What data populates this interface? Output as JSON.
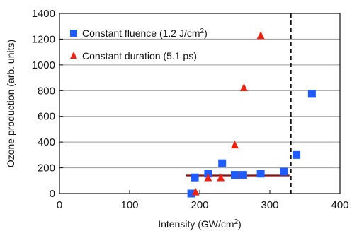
{
  "chart_data": {
    "type": "scatter",
    "xlabel": "Intensity (GW/cm",
    "xlabel_sup": "2",
    "xlabel_end": ")",
    "ylabel": "Ozone production (arb. units)",
    "xlim": [
      0,
      400
    ],
    "ylim": [
      0,
      1400
    ],
    "x_ticks": [
      "0",
      "100",
      "200",
      "300",
      "400"
    ],
    "y_ticks": [
      "0",
      "200",
      "400",
      "600",
      "800",
      "1000",
      "1200",
      "1400"
    ],
    "grid": "horizontal",
    "legend_position": "top-left",
    "series": [
      {
        "name": "Constant fluence (1.2 J/cm",
        "name_sup": "2",
        "name_end": ")",
        "marker": "square",
        "color": "#1f5cff",
        "points": [
          {
            "x": 188,
            "y": 0
          },
          {
            "x": 193,
            "y": 125
          },
          {
            "x": 212,
            "y": 155
          },
          {
            "x": 232,
            "y": 235
          },
          {
            "x": 250,
            "y": 145
          },
          {
            "x": 262,
            "y": 145
          },
          {
            "x": 287,
            "y": 155
          },
          {
            "x": 320,
            "y": 170
          },
          {
            "x": 338,
            "y": 300
          },
          {
            "x": 360,
            "y": 775
          }
        ]
      },
      {
        "name": "Constant duration (5.1 ps)",
        "marker": "triangle",
        "color": "#ee2211",
        "points": [
          {
            "x": 194,
            "y": 10
          },
          {
            "x": 212,
            "y": 120
          },
          {
            "x": 230,
            "y": 120
          },
          {
            "x": 250,
            "y": 375
          },
          {
            "x": 263,
            "y": 820
          },
          {
            "x": 287,
            "y": 1225
          }
        ]
      }
    ],
    "reference_lines": [
      {
        "kind": "horizontal",
        "y": 140,
        "x_start": 180,
        "x_end": 328,
        "color": "#8b1010",
        "style": "solid"
      },
      {
        "kind": "vertical",
        "x": 330,
        "style": "dashed",
        "color": "#111111"
      }
    ]
  }
}
